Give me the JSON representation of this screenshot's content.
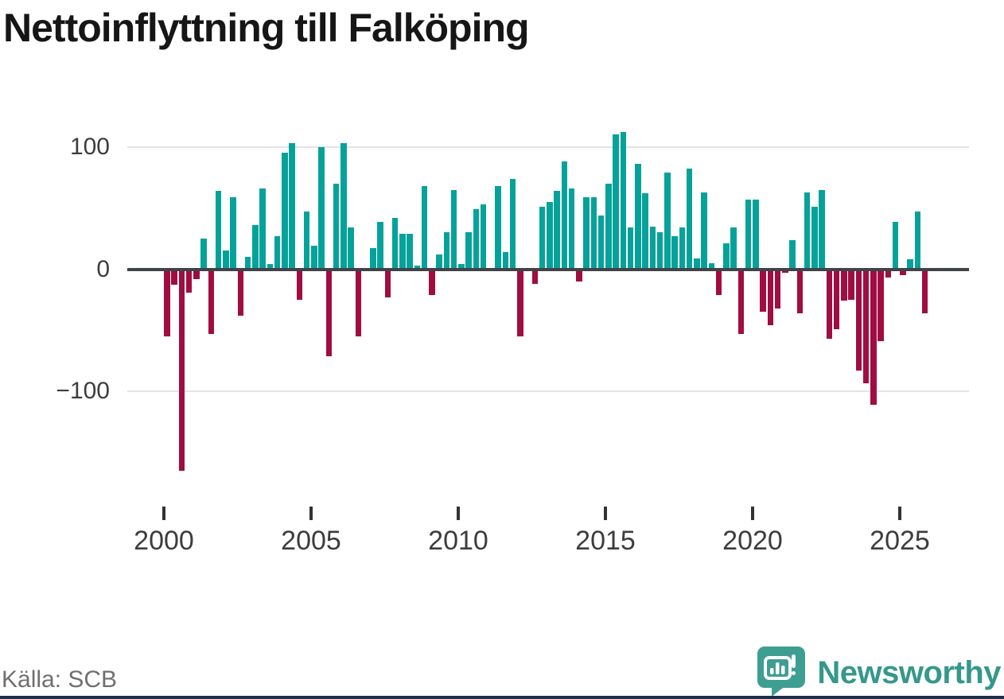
{
  "title": "Nettoinflyttning till Falköping",
  "source": "Källa: SCB",
  "brand": {
    "name": "Newsworthy",
    "icon": "bar-chart-speech-bubble-icon",
    "teal": "#35988b"
  },
  "colors": {
    "positive_bar": "#05a29a",
    "negative_bar": "#a00d41",
    "zero_line": "#404347",
    "gridline": "#e4e4e4",
    "axis_text": "#3d3d3d",
    "footer_strip": "#1e2f4d"
  },
  "chart_data": {
    "type": "bar",
    "title": "Nettoinflyttning till Falköping",
    "frequency": "quarterly",
    "start_period": "2000 Q1",
    "end_period": "2025 Q4",
    "x_tick_labels": [
      "2000",
      "2005",
      "2010",
      "2015",
      "2020",
      "2025"
    ],
    "x_tick_years": [
      2000,
      2005,
      2010,
      2015,
      2020,
      2025
    ],
    "y_tick_labels": [
      "100",
      "0",
      "−100"
    ],
    "y_tick_values": [
      100,
      0,
      -100
    ],
    "ylim": [
      -175,
      122
    ],
    "grid": "horizontal",
    "legend": "none",
    "values": [
      -55,
      -13,
      -165,
      -19,
      -8,
      25,
      -53,
      64,
      15,
      59,
      -38,
      10,
      36,
      66,
      4,
      27,
      95,
      103,
      -25,
      47,
      19,
      100,
      -71,
      70,
      103,
      34,
      -55,
      0,
      17,
      39,
      -23,
      42,
      29,
      29,
      3,
      68,
      -21,
      12,
      30,
      65,
      4,
      30,
      49,
      53,
      0,
      68,
      14,
      74,
      -55,
      0,
      -12,
      51,
      55,
      64,
      88,
      66,
      -10,
      59,
      59,
      44,
      70,
      110,
      112,
      34,
      86,
      62,
      35,
      30,
      79,
      27,
      34,
      82,
      9,
      63,
      5,
      -21,
      21,
      34,
      -53,
      57,
      57,
      -35,
      -46,
      -32,
      -3,
      24,
      -36,
      63,
      51,
      65,
      -57,
      -49,
      -26,
      -25,
      -83,
      -93,
      -111,
      -59,
      -7,
      39,
      -5,
      8,
      47,
      -36
    ]
  }
}
